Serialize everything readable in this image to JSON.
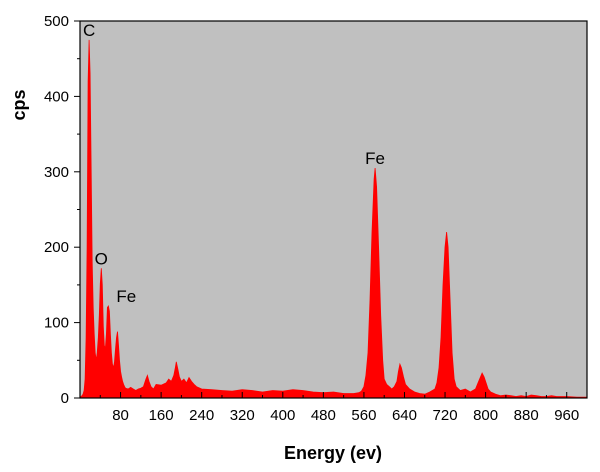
{
  "chart_data": {
    "type": "area",
    "title": "",
    "xlabel": "Energy (ev)",
    "ylabel": "cps",
    "xlim": [
      0,
      1000
    ],
    "ylim": [
      0,
      500
    ],
    "x_ticks": [
      80,
      160,
      240,
      320,
      400,
      480,
      560,
      640,
      720,
      800,
      880,
      960
    ],
    "y_ticks": [
      0,
      100,
      200,
      300,
      400,
      500
    ],
    "grid": false,
    "colors": {
      "series": "#ff0000",
      "plot_background": "#c0c0c0"
    },
    "series": [
      {
        "values": [
          [
            0,
            0
          ],
          [
            2,
            2
          ],
          [
            4,
            3
          ],
          [
            6,
            5
          ],
          [
            8,
            10
          ],
          [
            10,
            25
          ],
          [
            12,
            80
          ],
          [
            14,
            200
          ],
          [
            16,
            420
          ],
          [
            18,
            475
          ],
          [
            20,
            430
          ],
          [
            22,
            300
          ],
          [
            24,
            180
          ],
          [
            26,
            120
          ],
          [
            28,
            85
          ],
          [
            30,
            60
          ],
          [
            32,
            50
          ],
          [
            34,
            60
          ],
          [
            36,
            80
          ],
          [
            38,
            110
          ],
          [
            40,
            152
          ],
          [
            42,
            172
          ],
          [
            44,
            150
          ],
          [
            46,
            95
          ],
          [
            48,
            70
          ],
          [
            50,
            65
          ],
          [
            52,
            85
          ],
          [
            54,
            120
          ],
          [
            56,
            122
          ],
          [
            58,
            115
          ],
          [
            60,
            85
          ],
          [
            62,
            60
          ],
          [
            64,
            45
          ],
          [
            66,
            40
          ],
          [
            68,
            48
          ],
          [
            70,
            65
          ],
          [
            72,
            80
          ],
          [
            74,
            88
          ],
          [
            76,
            70
          ],
          [
            78,
            50
          ],
          [
            80,
            35
          ],
          [
            82,
            28
          ],
          [
            84,
            22
          ],
          [
            86,
            18
          ],
          [
            88,
            15
          ],
          [
            90,
            13
          ],
          [
            95,
            12
          ],
          [
            100,
            14
          ],
          [
            105,
            12
          ],
          [
            110,
            10
          ],
          [
            115,
            12
          ],
          [
            120,
            13
          ],
          [
            125,
            15
          ],
          [
            130,
            25
          ],
          [
            133,
            30
          ],
          [
            136,
            22
          ],
          [
            140,
            15
          ],
          [
            145,
            12
          ],
          [
            150,
            18
          ],
          [
            160,
            17
          ],
          [
            170,
            20
          ],
          [
            175,
            25
          ],
          [
            180,
            22
          ],
          [
            185,
            30
          ],
          [
            188,
            40
          ],
          [
            190,
            48
          ],
          [
            193,
            38
          ],
          [
            196,
            28
          ],
          [
            200,
            22
          ],
          [
            205,
            25
          ],
          [
            210,
            20
          ],
          [
            215,
            27
          ],
          [
            220,
            22
          ],
          [
            225,
            18
          ],
          [
            230,
            15
          ],
          [
            240,
            12
          ],
          [
            260,
            11
          ],
          [
            280,
            10
          ],
          [
            300,
            9
          ],
          [
            320,
            11
          ],
          [
            340,
            10
          ],
          [
            360,
            8
          ],
          [
            380,
            10
          ],
          [
            400,
            9
          ],
          [
            420,
            11
          ],
          [
            440,
            10
          ],
          [
            460,
            8
          ],
          [
            480,
            7
          ],
          [
            500,
            8
          ],
          [
            520,
            6
          ],
          [
            540,
            6
          ],
          [
            550,
            7
          ],
          [
            555,
            9
          ],
          [
            560,
            15
          ],
          [
            564,
            30
          ],
          [
            568,
            60
          ],
          [
            572,
            130
          ],
          [
            576,
            220
          ],
          [
            580,
            290
          ],
          [
            582,
            305
          ],
          [
            585,
            280
          ],
          [
            589,
            200
          ],
          [
            593,
            110
          ],
          [
            597,
            50
          ],
          [
            600,
            25
          ],
          [
            605,
            18
          ],
          [
            610,
            15
          ],
          [
            615,
            12
          ],
          [
            620,
            15
          ],
          [
            625,
            22
          ],
          [
            628,
            35
          ],
          [
            631,
            45
          ],
          [
            634,
            40
          ],
          [
            638,
            28
          ],
          [
            642,
            18
          ],
          [
            650,
            12
          ],
          [
            660,
            8
          ],
          [
            670,
            6
          ],
          [
            680,
            5
          ],
          [
            690,
            8
          ],
          [
            700,
            12
          ],
          [
            704,
            20
          ],
          [
            708,
            40
          ],
          [
            712,
            80
          ],
          [
            716,
            150
          ],
          [
            720,
            200
          ],
          [
            723,
            220
          ],
          [
            726,
            200
          ],
          [
            730,
            130
          ],
          [
            734,
            60
          ],
          [
            738,
            25
          ],
          [
            742,
            15
          ],
          [
            750,
            10
          ],
          [
            760,
            12
          ],
          [
            770,
            8
          ],
          [
            775,
            10
          ],
          [
            780,
            12
          ],
          [
            785,
            20
          ],
          [
            790,
            28
          ],
          [
            793,
            33
          ],
          [
            797,
            28
          ],
          [
            801,
            20
          ],
          [
            805,
            12
          ],
          [
            810,
            8
          ],
          [
            820,
            5
          ],
          [
            830,
            3
          ],
          [
            840,
            4
          ],
          [
            850,
            3
          ],
          [
            860,
            2
          ],
          [
            870,
            3
          ],
          [
            880,
            2
          ],
          [
            890,
            4
          ],
          [
            900,
            3
          ],
          [
            910,
            2
          ],
          [
            920,
            2
          ],
          [
            930,
            3
          ],
          [
            940,
            2
          ],
          [
            960,
            2
          ],
          [
            980,
            1
          ],
          [
            1000,
            1
          ]
        ]
      }
    ],
    "annotations": [
      {
        "text": "C",
        "x": 18,
        "y": 475
      },
      {
        "text": "O",
        "x": 42,
        "y": 172
      },
      {
        "text": "Fe",
        "x": 56,
        "y": 122
      },
      {
        "text": "Fe",
        "x": 582,
        "y": 305
      }
    ]
  }
}
